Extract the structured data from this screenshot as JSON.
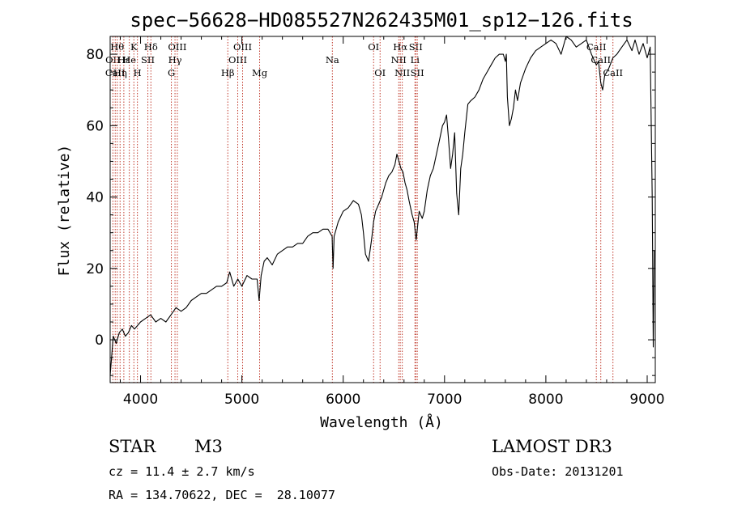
{
  "chart_data": {
    "type": "line",
    "title": "spec−56628−HD085527N262435M01_sp12−126.fits",
    "xlabel": "Wavelength (Å)",
    "ylabel": "Flux (relative)",
    "xlim": [
      3700,
      9080
    ],
    "ylim": [
      -12,
      85
    ],
    "xticks": [
      4000,
      5000,
      6000,
      7000,
      8000,
      9000
    ],
    "yticks": [
      0,
      20,
      40,
      60,
      80
    ],
    "spectrum": {
      "name": "flux",
      "x": [
        3700,
        3730,
        3760,
        3790,
        3820,
        3850,
        3880,
        3910,
        3940,
        3970,
        4000,
        4050,
        4100,
        4150,
        4200,
        4250,
        4300,
        4350,
        4400,
        4450,
        4500,
        4550,
        4600,
        4650,
        4700,
        4750,
        4800,
        4850,
        4880,
        4920,
        4960,
        5000,
        5050,
        5100,
        5150,
        5170,
        5190,
        5220,
        5250,
        5300,
        5350,
        5400,
        5450,
        5500,
        5550,
        5600,
        5650,
        5700,
        5750,
        5800,
        5850,
        5890,
        5900,
        5910,
        5950,
        6000,
        6050,
        6100,
        6150,
        6180,
        6200,
        6220,
        6250,
        6280,
        6300,
        6320,
        6350,
        6380,
        6420,
        6450,
        6480,
        6510,
        6530,
        6550,
        6570,
        6590,
        6610,
        6630,
        6650,
        6680,
        6700,
        6720,
        6750,
        6780,
        6800,
        6830,
        6860,
        6890,
        6920,
        6950,
        6980,
        7000,
        7020,
        7040,
        7060,
        7080,
        7100,
        7120,
        7140,
        7160,
        7180,
        7200,
        7230,
        7260,
        7300,
        7340,
        7380,
        7420,
        7460,
        7500,
        7540,
        7580,
        7600,
        7610,
        7620,
        7640,
        7660,
        7680,
        7700,
        7720,
        7750,
        7800,
        7850,
        7900,
        7950,
        8000,
        8050,
        8100,
        8150,
        8200,
        8250,
        8300,
        8350,
        8400,
        8450,
        8498,
        8520,
        8542,
        8560,
        8580,
        8620,
        8662,
        8700,
        8750,
        8800,
        8850,
        8880,
        8920,
        8960,
        9000,
        9030,
        9050,
        9060,
        9070
      ],
      "y": [
        -10,
        1,
        -1,
        2,
        3,
        1,
        2,
        4,
        3,
        4,
        5,
        6,
        7,
        5,
        6,
        5,
        7,
        9,
        8,
        9,
        11,
        12,
        13,
        13,
        14,
        15,
        15,
        16,
        19,
        15,
        17,
        15,
        18,
        17,
        17,
        11,
        18,
        22,
        23,
        21,
        24,
        25,
        26,
        26,
        27,
        27,
        29,
        30,
        30,
        31,
        31,
        29,
        20,
        29,
        33,
        36,
        37,
        39,
        38,
        35,
        30,
        24,
        22,
        28,
        33,
        36,
        38,
        40,
        44,
        46,
        47,
        49,
        52,
        50,
        48,
        47,
        44,
        42,
        39,
        35,
        33,
        28,
        36,
        34,
        36,
        42,
        46,
        48,
        52,
        56,
        60,
        61,
        63,
        56,
        48,
        52,
        58,
        41,
        35,
        48,
        52,
        58,
        66,
        67,
        68,
        70,
        73,
        75,
        77,
        79,
        80,
        80,
        78,
        80,
        68,
        60,
        62,
        65,
        70,
        67,
        72,
        76,
        79,
        81,
        82,
        83,
        84,
        83,
        80,
        85,
        84,
        82,
        83,
        84,
        80,
        77,
        78,
        72,
        70,
        74,
        76,
        79,
        80,
        82,
        84,
        81,
        84,
        80,
        83,
        79,
        82,
        40,
        -2,
        25
      ]
    },
    "line_ids": [
      {
        "x": 3727,
        "label": "OII",
        "row": 1
      },
      {
        "x": 3750,
        "label": "CaII",
        "row": 2
      },
      {
        "x": 3770,
        "label": "Hθ",
        "row": 0
      },
      {
        "x": 3798,
        "label": "Hη",
        "row": 2
      },
      {
        "x": 3835,
        "label": "Hε",
        "row": 1
      },
      {
        "x": 3889,
        "label": "He",
        "row": 1
      },
      {
        "x": 3934,
        "label": "K",
        "row": 0
      },
      {
        "x": 3969,
        "label": "H",
        "row": 2
      },
      {
        "x": 4072,
        "label": "SII",
        "row": 1
      },
      {
        "x": 4102,
        "label": "Hδ",
        "row": 0
      },
      {
        "x": 4304,
        "label": "G",
        "row": 2
      },
      {
        "x": 4340,
        "label": "Hγ",
        "row": 1
      },
      {
        "x": 4363,
        "label": "OIII",
        "row": 0
      },
      {
        "x": 4861,
        "label": "Hβ",
        "row": 2
      },
      {
        "x": 4959,
        "label": "OIII",
        "row": 1
      },
      {
        "x": 5007,
        "label": "OIII",
        "row": 0
      },
      {
        "x": 5175,
        "label": "Mg",
        "row": 2
      },
      {
        "x": 5893,
        "label": "Na",
        "row": 1
      },
      {
        "x": 6300,
        "label": "OI",
        "row": 0
      },
      {
        "x": 6364,
        "label": "OI",
        "row": 2
      },
      {
        "x": 6548,
        "label": "NII",
        "row": 1
      },
      {
        "x": 6563,
        "label": "Hα",
        "row": 0
      },
      {
        "x": 6583,
        "label": "NII",
        "row": 2
      },
      {
        "x": 6708,
        "label": "Li",
        "row": 1
      },
      {
        "x": 6716,
        "label": "SII",
        "row": 0
      },
      {
        "x": 6731,
        "label": "SII",
        "row": 2
      },
      {
        "x": 8498,
        "label": "CaII",
        "row": 0
      },
      {
        "x": 8542,
        "label": "CaII",
        "row": 1
      },
      {
        "x": 8662,
        "label": "CaII",
        "row": 2
      }
    ]
  },
  "info": {
    "class": "STAR",
    "subclass": "M3",
    "survey": "LAMOST DR3",
    "redshift": "cz = 11.4 ± 2.7 km/s",
    "obs_date": "Obs-Date: 20131201",
    "coords": "RA = 134.70622, DEC =  28.10077"
  }
}
